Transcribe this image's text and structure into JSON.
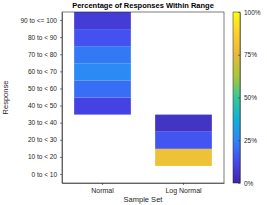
{
  "chart_data": {
    "type": "heatmap",
    "title": "Percentage of Responses Within Range",
    "x_label": "Sample Set",
    "y_label": "Response",
    "x_categories": [
      "Normal",
      "Log Normal"
    ],
    "y_categories": [
      "0 to < 10",
      "10 to < 20",
      "20 to < 30",
      "30 to < 40",
      "40 to < 50",
      "50 to < 60",
      "60 to < 70",
      "70 to < 80",
      "80 to < 90",
      "90 to <= 100"
    ],
    "cells": [
      [
        null,
        null
      ],
      [
        null,
        80
      ],
      [
        null,
        15
      ],
      [
        null,
        5
      ],
      [
        10,
        null
      ],
      [
        20,
        null
      ],
      [
        26,
        null
      ],
      [
        22,
        null
      ],
      [
        14,
        null
      ],
      [
        8,
        null
      ]
    ],
    "colorbar_range": [
      0,
      100
    ],
    "colorbar_ticks": [
      {
        "value": 0,
        "label": "0%"
      },
      {
        "value": 25,
        "label": "25%"
      },
      {
        "value": 50,
        "label": "50%"
      },
      {
        "value": 75,
        "label": "75%"
      },
      {
        "value": 100,
        "label": "100%"
      }
    ],
    "grid": false
  }
}
